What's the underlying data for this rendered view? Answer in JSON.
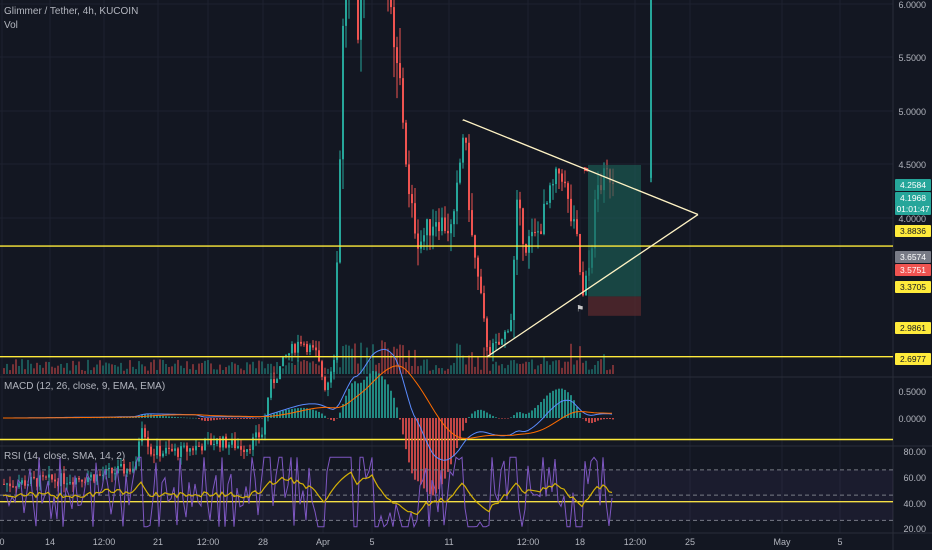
{
  "header": {
    "symbol_line": "Glimmer / Tether, 4h, KUCOIN",
    "volume_label": "Vol"
  },
  "indicators": {
    "macd_label": "MACD (12, 26, close, 9, EMA, EMA)",
    "rsi_label": "RSI (14, close, SMA, 14, 2)"
  },
  "colors": {
    "background": "#131722",
    "up": "#26a69a",
    "down": "#ef5350",
    "level": "#ffeb3b",
    "triangle": "#fff3c4",
    "macd_line": "#5b8cff",
    "signal_line": "#ff6d00",
    "rsi_line": "#7e57c2",
    "rsi_ma": "#d4b106",
    "target_zone": "#1b5e56",
    "stop_zone": "#5a2a2e"
  },
  "chart_data": [
    {
      "type": "candlestick",
      "title": "Glimmer / Tether, 4h, KUCOIN",
      "y_ticks": [
        "6.0000",
        "5.5000",
        "5.0000",
        "4.5000",
        "4.0000"
      ],
      "x_ticks": [
        "0",
        "14",
        "12:00",
        "21",
        "12:00",
        "28",
        "Apr",
        "5",
        "11",
        "12:00",
        "18",
        "12:00",
        "25",
        "May",
        "5"
      ],
      "ylim": [
        2.65,
        6.0
      ],
      "price_tags": [
        {
          "value": "4.2584",
          "color": "#26a69a"
        },
        {
          "value": "4.1968",
          "color": "#26a69a"
        },
        {
          "value": "01:01:47",
          "color": "#26a69a"
        },
        {
          "value": "3.8836",
          "color": "#ffeb3b"
        },
        {
          "value": "3.6574",
          "color": "#787b86"
        },
        {
          "value": "3.5751",
          "color": "#ef5350"
        },
        {
          "value": "3.3705",
          "color": "#ffeb3b"
        },
        {
          "value": "2.9861",
          "color": "#ffeb3b"
        },
        {
          "value": "2.6977",
          "color": "#ffeb3b"
        }
      ],
      "horizontal_levels": [
        3.8836,
        3.3705,
        2.9861,
        2.6977
      ],
      "triangle_pattern": {
        "upper_start": [
          0,
          4.47
        ],
        "apex": [
          0,
          4.03
        ],
        "lower_start": [
          0,
          3.37
        ]
      },
      "key_points": [
        {
          "x": "Apr",
          "y": 5.4
        },
        {
          "x": "5",
          "y": 5.95
        },
        {
          "x": "11",
          "y": 4.47
        },
        {
          "x": "11",
          "y": 3.38
        },
        {
          "x": "18",
          "y": 3.58
        },
        {
          "x": "12:00",
          "y": 5.32
        }
      ]
    },
    {
      "type": "line",
      "title": "MACD (12, 26, close, 9, EMA, EMA)",
      "y_ticks": [
        "0.5000",
        "0.0000"
      ],
      "series": [
        {
          "name": "MACD"
        },
        {
          "name": "Signal"
        },
        {
          "name": "Histogram"
        }
      ]
    },
    {
      "type": "line",
      "title": "RSI (14, close, SMA, 14, 2)",
      "y_ticks": [
        "80.00",
        "60.00",
        "40.00",
        "20.00"
      ],
      "bands": [
        70,
        50,
        30
      ],
      "ylim": [
        20,
        85
      ]
    }
  ]
}
